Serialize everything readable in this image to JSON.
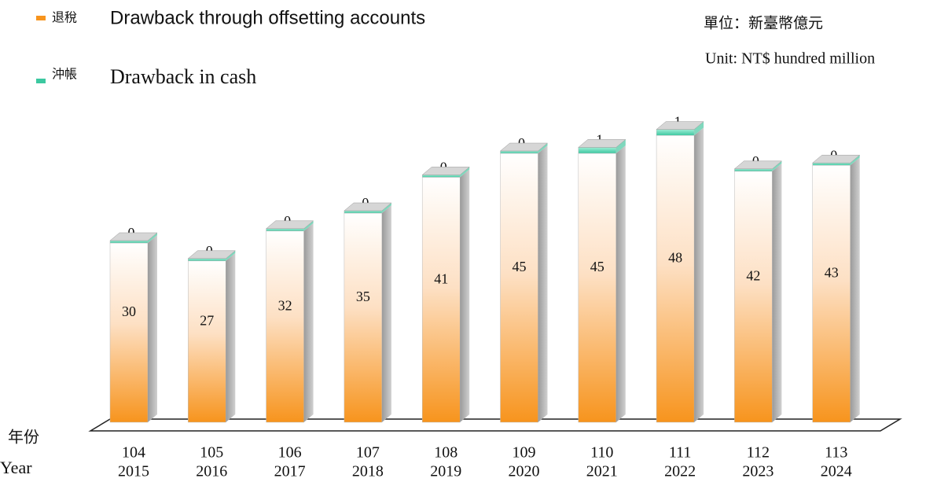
{
  "chart_data": {
    "type": "bar3d_stacked",
    "unit_zh": "單位：新臺幣億元",
    "unit_en": "Unit: NT$ hundred million",
    "x_label_zh": "年份",
    "x_label_en": "Year",
    "categories": [
      [
        "104",
        "2015"
      ],
      [
        "105",
        "2016"
      ],
      [
        "106",
        "2017"
      ],
      [
        "107",
        "2018"
      ],
      [
        "108",
        "2019"
      ],
      [
        "109",
        "2020"
      ],
      [
        "110",
        "2021"
      ],
      [
        "111",
        "2022"
      ],
      [
        "112",
        "2023"
      ],
      [
        "113",
        "2024"
      ]
    ],
    "series": [
      {
        "name": "退稅",
        "name_en": "Drawback through offsetting accounts",
        "color": "#f7941d",
        "values": [
          30,
          27,
          32,
          35,
          41,
          45,
          45,
          48,
          42,
          43
        ]
      },
      {
        "name": "沖帳",
        "name_en": "Drawback in cash",
        "color": "#3cc8a0",
        "values": [
          0,
          0,
          0,
          0,
          0,
          0,
          1,
          1,
          0,
          0
        ]
      }
    ]
  }
}
